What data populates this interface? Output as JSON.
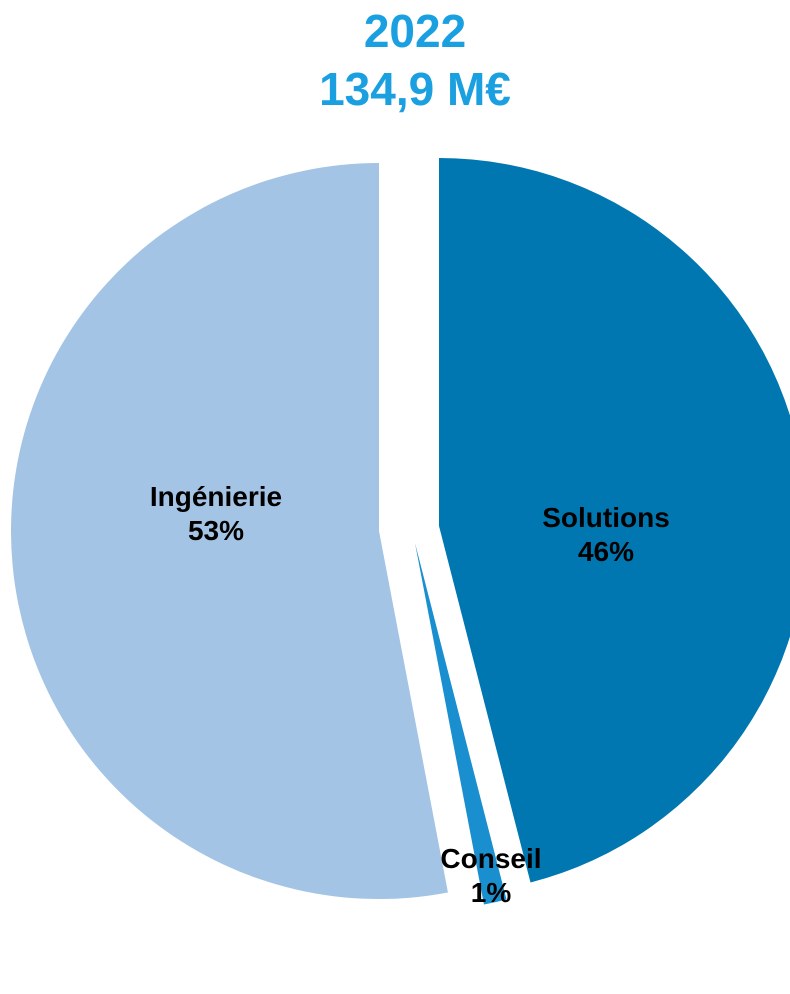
{
  "chart_data": {
    "type": "pie",
    "title": "2022",
    "subtitle": "134,9 M€",
    "slices": [
      {
        "name": "Solutions",
        "value": 46,
        "label": "46%",
        "color": "#0077b0"
      },
      {
        "name": "Conseil",
        "value": 1,
        "label": "1%",
        "color": "#1a8fd0"
      },
      {
        "name": "Ingénierie",
        "value": 53,
        "label": "53%",
        "color": "#a3c4e5"
      }
    ],
    "start_angle_deg": 0,
    "direction": "clockwise",
    "exploded": true,
    "legend": "none"
  }
}
